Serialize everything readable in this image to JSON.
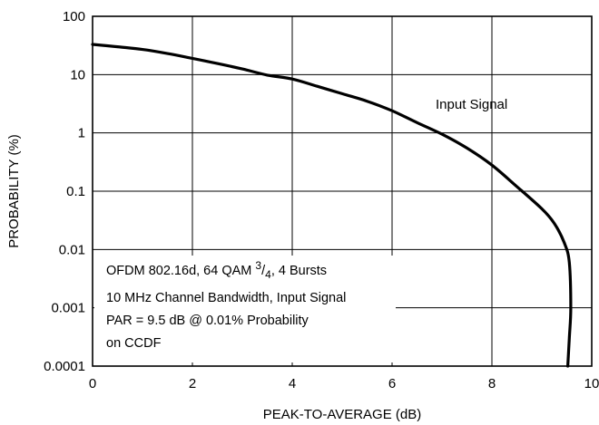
{
  "chart_data": {
    "type": "line",
    "xlabel": "PEAK-TO-AVERAGE (dB)",
    "ylabel": "PROBABILITY (%)",
    "xlim": [
      0,
      10
    ],
    "ylim": [
      0.0001,
      100
    ],
    "yscale": "log",
    "grid": true,
    "x_ticks": [
      "0",
      "2",
      "4",
      "6",
      "8",
      "10"
    ],
    "y_ticks": [
      "100",
      "10",
      "1",
      "0.1",
      "0.01",
      "0.001",
      "0.0001"
    ],
    "series": [
      {
        "name": "Input Signal",
        "x": [
          0,
          0.5,
          1.0,
          1.5,
          2.0,
          2.5,
          3.0,
          3.5,
          4.0,
          4.5,
          5.0,
          5.5,
          6.0,
          6.5,
          7.0,
          7.5,
          8.0,
          8.5,
          9.0,
          9.25,
          9.45,
          9.55,
          9.58,
          9.55,
          9.52
        ],
        "y": [
          33,
          30,
          27,
          23,
          19,
          15.5,
          12.5,
          9.8,
          8.4,
          6.3,
          4.7,
          3.5,
          2.4,
          1.5,
          0.95,
          0.55,
          0.28,
          0.12,
          0.05,
          0.028,
          0.013,
          0.006,
          0.001,
          0.0003,
          0.0001
        ]
      }
    ],
    "annotations": [
      "OFDM 802.16d, 64 QAM 3/4, 4 Bursts",
      "10 MHz Channel Bandwidth, Input Signal",
      "PAR = 9.5 dB @ 0.01% Probability",
      "on CCDF"
    ]
  }
}
